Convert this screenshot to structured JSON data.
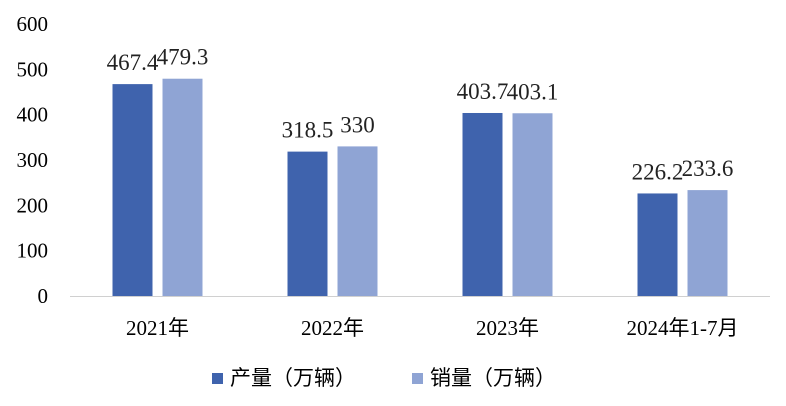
{
  "chart_data": {
    "type": "bar",
    "categories": [
      "2021年",
      "2022年",
      "2023年",
      "2024年1-7月"
    ],
    "series": [
      {
        "name": "产量（万辆）",
        "values": [
          467.4,
          318.5,
          403.7,
          226.2
        ],
        "color": "#3f63ad"
      },
      {
        "name": "销量（万辆）",
        "values": [
          479.3,
          330,
          403.1,
          233.6
        ],
        "color": "#8fa4d4"
      }
    ],
    "y_ticks": [
      "0",
      "100",
      "200",
      "300",
      "400",
      "500",
      "600"
    ],
    "data_labels": [
      [
        "467.4",
        "318.5",
        "403.7",
        "226.2"
      ],
      [
        "479.3",
        "330",
        "403.1",
        "233.6"
      ]
    ],
    "ylim": [
      0,
      600
    ],
    "grid": false,
    "legend_position": "bottom"
  }
}
